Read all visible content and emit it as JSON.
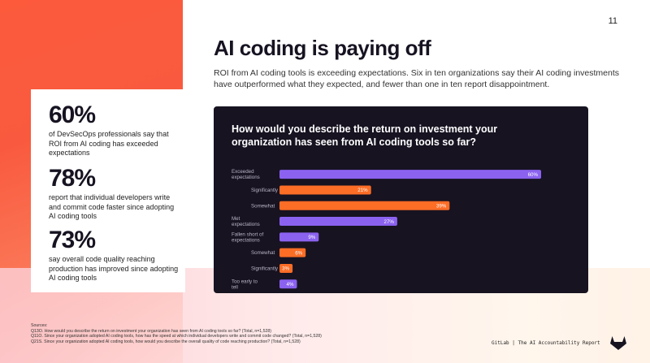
{
  "page_number": "11",
  "title": "AI coding is paying off",
  "subtitle": "ROI from AI coding tools is exceeding expectations. Six in ten organizations say their AI coding investments have outperformed what they expected, and fewer than one in ten report disappointment.",
  "stats": [
    {
      "value": "60%",
      "text": "of DevSecOps professionals say that ROI from AI coding has exceeded expectations"
    },
    {
      "value": "78%",
      "text": "report that individual developers write and commit code faster since adopting AI coding tools"
    },
    {
      "value": "73%",
      "text": "say overall code quality reaching production has improved since adopting AI coding tools"
    }
  ],
  "chart_data": {
    "type": "bar",
    "title": "How would you describe the return on investment your organization has seen from AI coding tools so far?",
    "categories": [
      "Exceeded expectations",
      "Significantly",
      "Somewhat",
      "Met expectations",
      "Fallen short of expectations",
      "Somewhat",
      "Significantly",
      "Too early to tell"
    ],
    "values": [
      60,
      21,
      39,
      27,
      9,
      6,
      3,
      4
    ],
    "value_labels": [
      "60%",
      "21%",
      "39%",
      "27%",
      "9%",
      "6%",
      "3%",
      "4%"
    ],
    "bar_colors": [
      "#8b62f0",
      "#fc6d26",
      "#fc6d26",
      "#8b62f0",
      "#8b62f0",
      "#fc6d26",
      "#fc6d26",
      "#8b62f0"
    ],
    "orientation": "horizontal",
    "xlim": [
      0,
      60
    ],
    "grid": false
  },
  "sources": [
    "Sources:",
    "Q13O. How would you describe the return on investment your organization has seen from AI coding tools so far? (Total, n=1,528)",
    "Q11O. Since your organization adopted AI coding tools, how has the speed at which individual developers write and commit code changed? (Total, n=1,528)",
    "Q21S. Since your organization adopted AI coding tools, how would you describe the overall quality of code reaching production? (Total, n=1,528)"
  ],
  "footer": "GitLab | The AI Accountability Report",
  "logo_icon": "gitlab-tanuki-icon",
  "colors": {
    "accent_orange": "#fc6d26",
    "accent_purple": "#8b62f0",
    "panel": "#171321"
  }
}
